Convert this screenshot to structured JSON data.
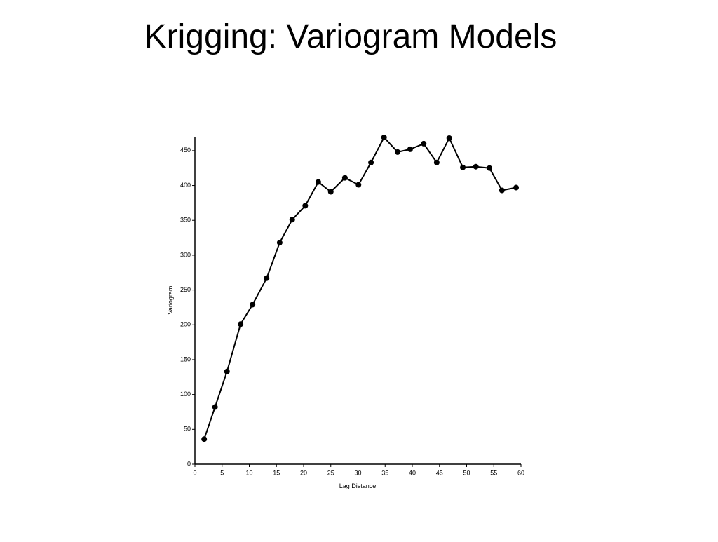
{
  "chart_data": {
    "type": "line",
    "title": "Krigging: Variogram Models",
    "x_label": "Lag Distance",
    "y_label": "Variogram",
    "x": [
      1.7,
      3.7,
      5.9,
      8.4,
      10.6,
      13.2,
      15.6,
      17.9,
      20.3,
      22.7,
      25.0,
      27.6,
      30.1,
      32.4,
      34.8,
      37.3,
      39.6,
      42.1,
      44.5,
      46.8,
      49.3,
      51.7,
      54.2,
      56.5,
      59.1
    ],
    "series": [
      {
        "name": "Variogram",
        "color": "#000000",
        "values": [
          36,
          82,
          133,
          201,
          229,
          267,
          318,
          351,
          371,
          405,
          391,
          411,
          401,
          433,
          469,
          448,
          452,
          460,
          433,
          468,
          426,
          427,
          425,
          393,
          397
        ]
      }
    ],
    "xlim": [
      0,
      60
    ],
    "ylim": [
      0,
      470
    ],
    "xticks": [
      0,
      5,
      10,
      15,
      20,
      25,
      30,
      35,
      40,
      45,
      50,
      55,
      60
    ],
    "yticks": [
      0,
      50,
      100,
      150,
      200,
      250,
      300,
      350,
      400,
      450
    ]
  }
}
